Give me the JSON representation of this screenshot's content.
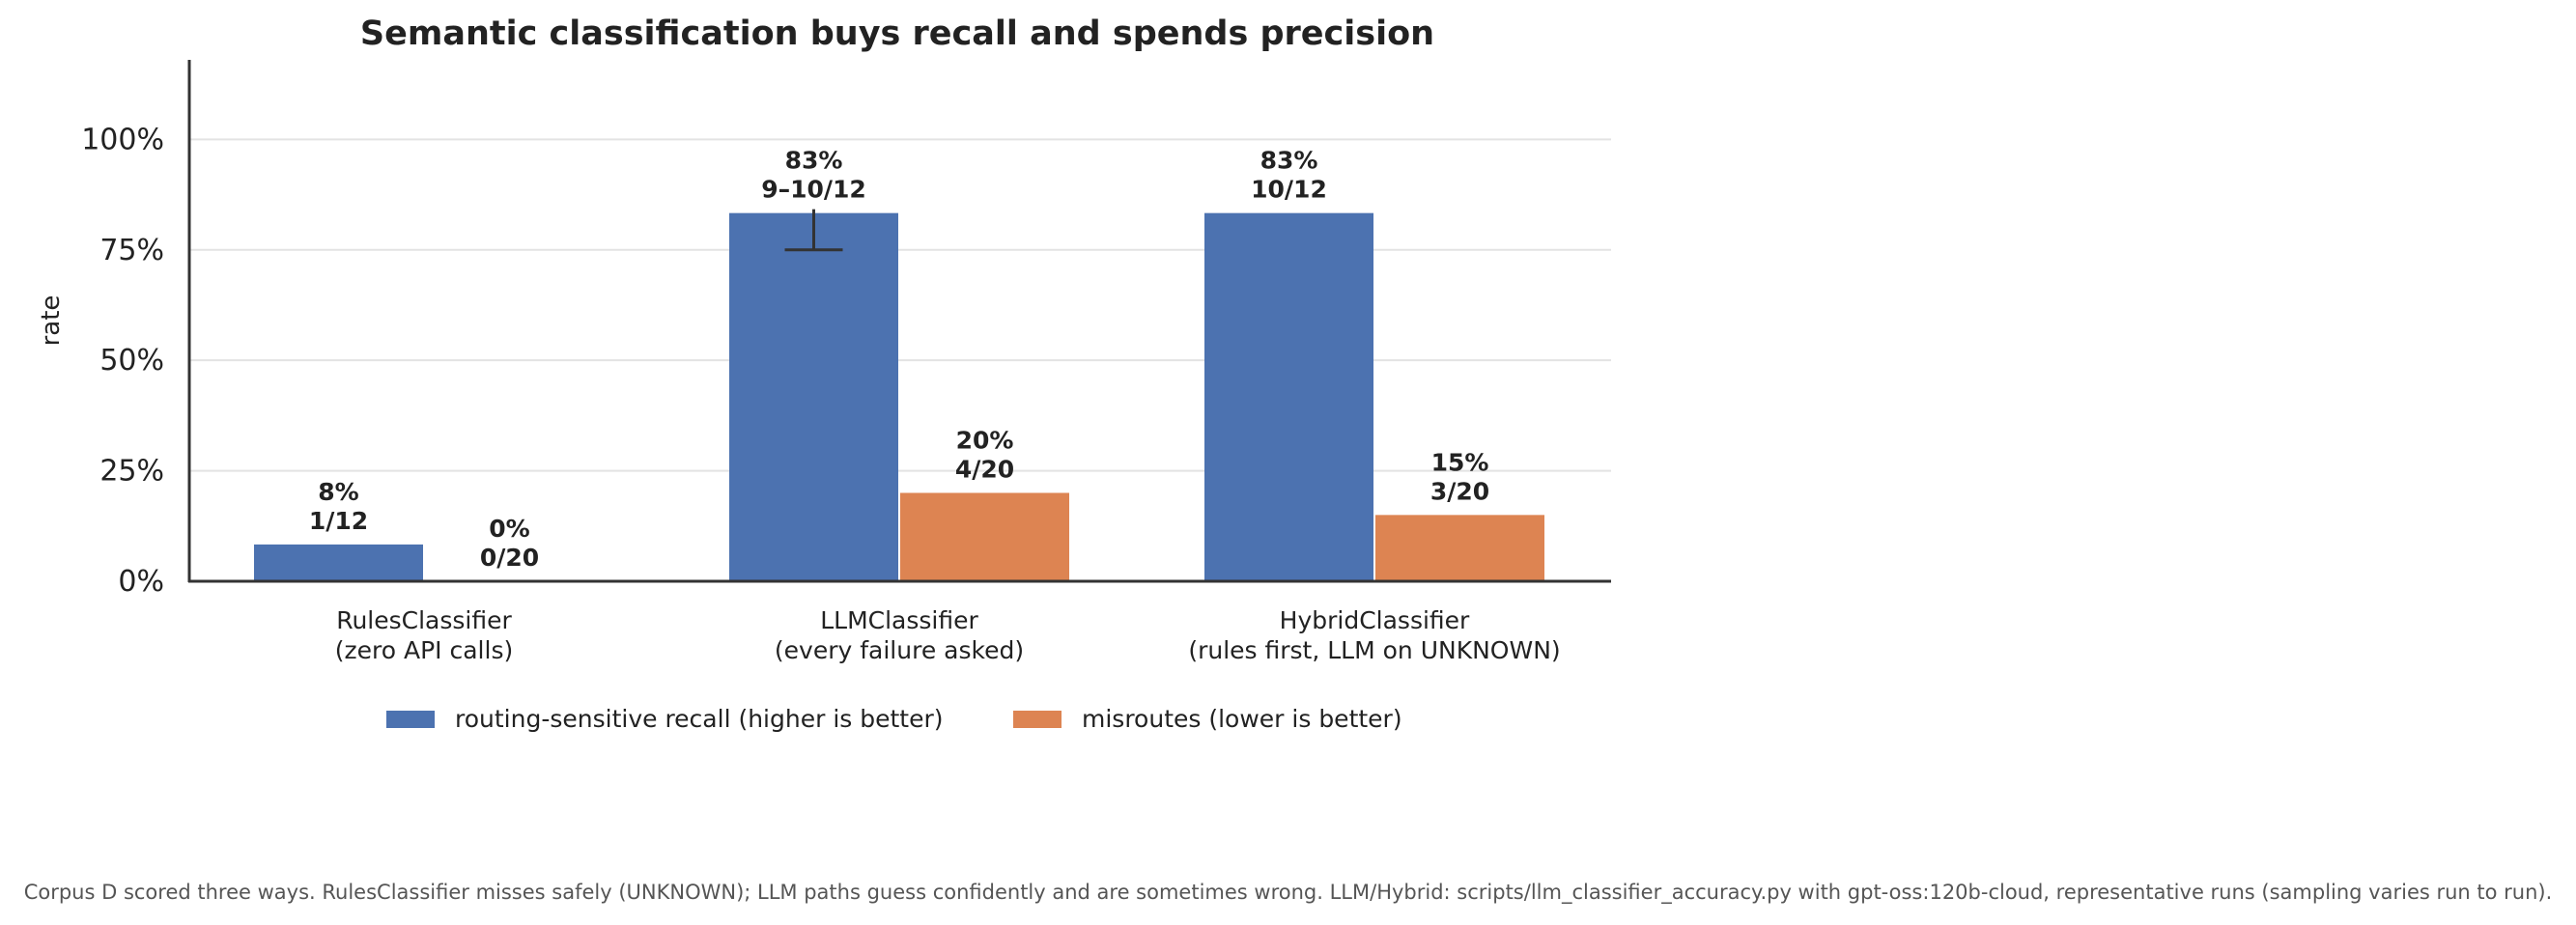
{
  "chart_data": {
    "type": "bar",
    "title": "Semantic classification buys recall and spends precision",
    "xlabel": "",
    "ylabel": "rate",
    "ylim": [
      0,
      1.18
    ],
    "yticks": [
      {
        "value": 0,
        "label": "0%"
      },
      {
        "value": 0.25,
        "label": "25%"
      },
      {
        "value": 0.5,
        "label": "50%"
      },
      {
        "value": 0.75,
        "label": "75%"
      },
      {
        "value": 1.0,
        "label": "100%"
      }
    ],
    "grid": "horizontal",
    "legend_position": "bottom",
    "categories": [
      {
        "name": "RulesClassifier",
        "note": "(zero API calls)"
      },
      {
        "name": "LLMClassifier",
        "note": "(every failure asked)"
      },
      {
        "name": "HybridClassifier",
        "note": "(rules first, LLM on UNKNOWN)"
      }
    ],
    "series": [
      {
        "name": "routing-sensitive recall (higher is better)",
        "color": "#4c72b0",
        "values": [
          0.0833,
          0.8333,
          0.8333
        ],
        "labels": [
          [
            "8%",
            "1/12"
          ],
          [
            "83%",
            "9–10/12"
          ],
          [
            "83%",
            "10/12"
          ]
        ],
        "error_low": [
          null,
          0.75,
          null
        ],
        "error_high": [
          null,
          0.8333,
          null
        ]
      },
      {
        "name": "misroutes (lower is better)",
        "color": "#dd8452",
        "values": [
          0.0,
          0.2,
          0.15
        ],
        "labels": [
          [
            "0%",
            "0/20"
          ],
          [
            "20%",
            "4/20"
          ],
          [
            "15%",
            "3/20"
          ]
        ]
      }
    ]
  },
  "caption": "Corpus D scored three ways. RulesClassifier misses safely (UNKNOWN); LLM paths guess confidently and are sometimes wrong. LLM/Hybrid: scripts/llm_classifier_accuracy.py with gpt-oss:120b-cloud, representative runs (sampling varies run to run)."
}
